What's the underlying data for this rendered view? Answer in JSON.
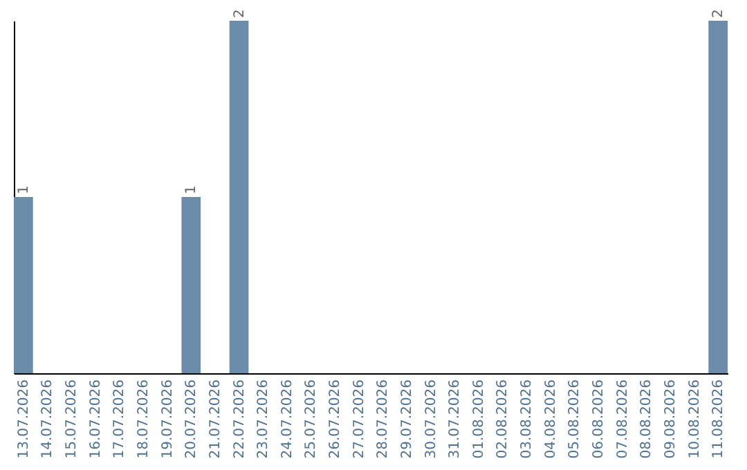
{
  "chart_data": {
    "type": "bar",
    "categories": [
      "13.07.2026",
      "14.07.2026",
      "15.07.2026",
      "16.07.2026",
      "17.07.2026",
      "18.07.2026",
      "19.07.2026",
      "20.07.2026",
      "21.07.2026",
      "22.07.2026",
      "23.07.2026",
      "24.07.2026",
      "25.07.2026",
      "26.07.2026",
      "27.07.2026",
      "28.07.2026",
      "29.07.2026",
      "30.07.2026",
      "31.07.2026",
      "01.08.2026",
      "02.08.2026",
      "03.08.2026",
      "04.08.2026",
      "05.08.2026",
      "06.08.2026",
      "07.08.2026",
      "08.08.2026",
      "09.08.2026",
      "10.08.2026",
      "11.08.2026"
    ],
    "values": [
      1,
      0,
      0,
      0,
      0,
      0,
      0,
      1,
      0,
      2,
      0,
      0,
      0,
      0,
      0,
      0,
      0,
      0,
      0,
      0,
      0,
      0,
      0,
      0,
      0,
      0,
      0,
      0,
      0,
      2
    ],
    "value_labels": [
      "1",
      null,
      null,
      null,
      null,
      null,
      null,
      "1",
      null,
      "2",
      null,
      null,
      null,
      null,
      null,
      null,
      null,
      null,
      null,
      null,
      null,
      null,
      null,
      null,
      null,
      null,
      null,
      null,
      null,
      "2"
    ],
    "color": "#6b8cab",
    "ylim": [
      0,
      2
    ],
    "tick_labels": "x"
  }
}
